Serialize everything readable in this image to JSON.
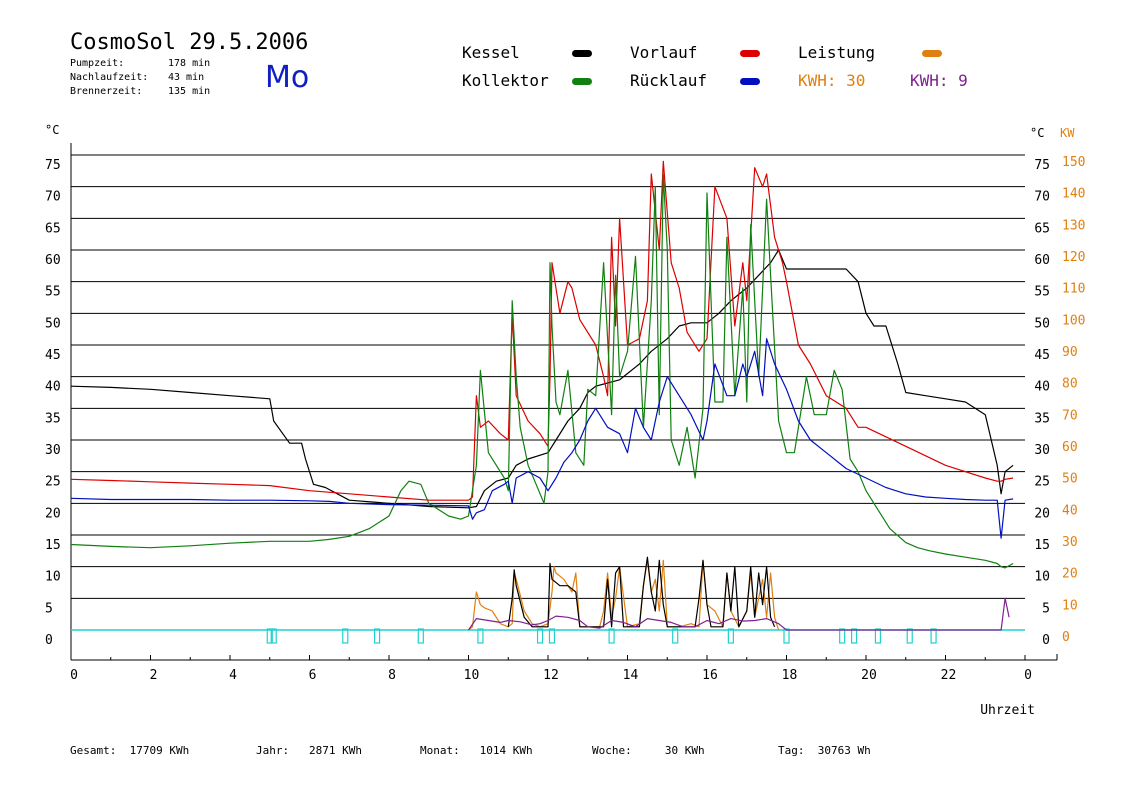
{
  "header": {
    "title": "CosmoSol 29.5.2006",
    "day": "Mo",
    "pumpzeit_label": "Pumpzeit:",
    "pumpzeit_value": "178 min",
    "nachlauf_label": "Nachlaufzeit:",
    "nachlauf_value": "43 min",
    "brenner_label": "Brennerzeit:",
    "brenner_value": "135 min"
  },
  "legend": {
    "kessel": "Kessel",
    "vorlauf": "Vorlauf",
    "leistung": "Leistung",
    "kollektor": "Kollektor",
    "ruecklauf": "Rücklauf",
    "kwh1": "KWH: 30",
    "kwh2": "KWH: 9"
  },
  "colors": {
    "kessel": "#000000",
    "vorlauf": "#dd0000",
    "leistung": "#e08010",
    "kollektor": "#108010",
    "ruecklauf": "#0010c0",
    "kwh2": "#802090",
    "pump": "#20d0d0"
  },
  "footer": {
    "gesamt": "Gesamt:  17709 KWh",
    "jahr": "Jahr:   2871 KWh",
    "monat": "Monat:   1014 KWh",
    "woche": "Woche:     30 KWh",
    "tag": "Tag:  30763 Wh"
  },
  "chart_data": {
    "type": "line",
    "xlabel": "Uhrzeit",
    "ylabel_left": "°C",
    "ylabel_right_temp": "°C",
    "ylabel_right_power": "KW",
    "xlim": [
      0,
      24
    ],
    "ylim": [
      0,
      75
    ],
    "y2lim": [
      0,
      150
    ],
    "x_ticks": [
      "0",
      "2",
      "4",
      "6",
      "8",
      "10",
      "12",
      "14",
      "16",
      "18",
      "20",
      "22",
      "0"
    ],
    "y_ticks": [
      "0",
      "5",
      "10",
      "15",
      "20",
      "25",
      "30",
      "35",
      "40",
      "45",
      "50",
      "55",
      "60",
      "65",
      "70",
      "75"
    ],
    "y2_ticks": [
      "0",
      "10",
      "20",
      "30",
      "40",
      "50",
      "60",
      "70",
      "80",
      "90",
      "100",
      "110",
      "120",
      "130",
      "140",
      "150"
    ],
    "grid": true,
    "series": [
      {
        "name": "Kessel",
        "color": "#000000",
        "x": [
          0,
          1,
          2,
          3,
          4,
          5,
          5.1,
          5.5,
          5.8,
          5.9,
          6.1,
          6.4,
          7,
          8,
          9,
          10,
          10.2,
          10.4,
          10.7,
          11,
          11.2,
          11.5,
          12,
          12.2,
          12.5,
          12.8,
          13,
          13.2,
          13.5,
          13.8,
          14,
          14.3,
          14.6,
          15,
          15.3,
          15.6,
          16,
          16.3,
          16.6,
          17,
          17.3,
          17.6,
          17.8,
          18,
          18.5,
          19,
          19.5,
          19.8,
          20,
          20.2,
          20.5,
          20.8,
          21,
          21.5,
          22,
          22.5,
          23,
          23.3,
          23.4,
          23.5,
          23.7
        ],
        "y": [
          38.5,
          38.3,
          38,
          37.5,
          37,
          36.5,
          33,
          29.5,
          29.5,
          27,
          23,
          22.5,
          20.5,
          20,
          19.5,
          19.3,
          19.5,
          22,
          23.5,
          24,
          26,
          27,
          28,
          30,
          33,
          35,
          37.5,
          38.5,
          39,
          39.5,
          40.5,
          42,
          44,
          46,
          48,
          48.5,
          48.5,
          50,
          52,
          54,
          56,
          58,
          60,
          57,
          57,
          57,
          57,
          55,
          50,
          48,
          48,
          42,
          37.5,
          37,
          36.5,
          36,
          34,
          26,
          21.5,
          25,
          26
        ]
      },
      {
        "name": "Vorlauf",
        "color": "#dd0000",
        "x": [
          0,
          1,
          2,
          3,
          4,
          5,
          6,
          7,
          8,
          9,
          10,
          10.1,
          10.2,
          10.3,
          10.5,
          10.8,
          11,
          11.1,
          11.2,
          11.5,
          11.8,
          12,
          12.05,
          12.1,
          12.3,
          12.5,
          12.6,
          12.8,
          13.2,
          13.4,
          13.5,
          13.6,
          13.7,
          13.8,
          14,
          14.3,
          14.5,
          14.6,
          14.8,
          14.9,
          15.1,
          15.3,
          15.5,
          15.8,
          16,
          16.2,
          16.5,
          16.7,
          16.9,
          17,
          17.2,
          17.4,
          17.5,
          17.7,
          17.9,
          18,
          18.3,
          18.6,
          19,
          19.5,
          19.8,
          20,
          20.5,
          21,
          21.5,
          22,
          22.5,
          23,
          23.3,
          23.4,
          23.5,
          23.7
        ],
        "y": [
          23.8,
          23.6,
          23.4,
          23.2,
          23,
          22.8,
          22,
          21.5,
          21,
          20.5,
          20.5,
          21,
          37,
          32,
          33,
          31,
          30,
          50,
          37,
          33,
          31,
          29,
          40,
          58,
          50,
          55,
          54,
          49,
          45,
          40,
          37,
          62,
          48,
          65,
          45,
          46,
          52,
          72,
          60,
          74,
          58,
          54,
          47,
          44,
          46,
          70,
          65,
          48,
          58,
          52,
          73,
          70,
          72,
          62,
          58,
          55,
          45,
          42,
          37,
          35,
          32,
          32,
          30.5,
          29,
          27.5,
          26,
          25,
          24,
          23.5,
          23.5,
          23.8,
          24
        ]
      },
      {
        "name": "Kollektor",
        "color": "#108010",
        "x": [
          0,
          1,
          2,
          3,
          4,
          5,
          6,
          6.5,
          7,
          7.5,
          8,
          8.3,
          8.5,
          8.8,
          9,
          9.5,
          9.8,
          10,
          10.2,
          10.3,
          10.5,
          10.7,
          10.9,
          11,
          11.1,
          11.2,
          11.3,
          11.5,
          11.7,
          11.9,
          12,
          12.05,
          12.1,
          12.2,
          12.3,
          12.5,
          12.7,
          12.9,
          13,
          13.2,
          13.4,
          13.6,
          13.7,
          13.8,
          13.9,
          14,
          14.2,
          14.4,
          14.6,
          14.7,
          14.8,
          14.9,
          15,
          15.1,
          15.3,
          15.5,
          15.7,
          15.9,
          16,
          16.2,
          16.4,
          16.5,
          16.7,
          16.9,
          17,
          17.1,
          17.3,
          17.5,
          17.6,
          17.8,
          18,
          18.2,
          18.4,
          18.5,
          18.7,
          19,
          19.2,
          19.4,
          19.6,
          19.8,
          20,
          20.3,
          20.6,
          21,
          21.3,
          21.6,
          22,
          22.5,
          23,
          23.3,
          23.4,
          23.5,
          23.7
        ],
        "y": [
          13.5,
          13.2,
          13,
          13.3,
          13.7,
          14,
          14,
          14.3,
          14.8,
          16,
          18,
          22,
          23.5,
          23,
          20,
          18,
          17.5,
          18,
          26,
          41,
          28,
          26,
          24,
          22,
          52,
          40,
          32,
          26,
          23,
          20,
          25,
          58,
          48,
          36,
          34,
          41,
          28,
          26,
          38,
          37,
          58,
          34,
          56,
          40,
          42,
          44,
          59,
          32,
          52,
          70,
          34,
          72,
          60,
          30,
          26,
          32,
          24,
          35,
          69,
          36,
          36,
          62,
          37,
          54,
          36,
          64,
          40,
          68,
          56,
          33,
          28,
          28,
          36,
          40,
          34,
          34,
          41,
          38,
          27,
          25,
          22,
          19,
          16,
          13.8,
          13,
          12.5,
          12,
          11.5,
          11,
          10.5,
          10,
          9.8,
          10.5
        ]
      },
      {
        "name": "Rücklauf",
        "color": "#0010c0",
        "x": [
          0,
          1,
          2,
          3,
          4,
          5,
          6,
          6.5,
          7,
          8,
          9,
          10,
          10.1,
          10.2,
          10.4,
          10.6,
          10.9,
          11,
          11.1,
          11.2,
          11.5,
          11.8,
          12,
          12.2,
          12.4,
          12.6,
          12.8,
          13,
          13.2,
          13.5,
          13.8,
          14,
          14.2,
          14.4,
          14.6,
          14.8,
          15,
          15.3,
          15.6,
          15.9,
          16,
          16.2,
          16.5,
          16.7,
          16.9,
          17,
          17.2,
          17.4,
          17.5,
          17.7,
          18,
          18.3,
          18.6,
          19,
          19.5,
          20,
          20.5,
          21,
          21.5,
          22,
          22.5,
          23,
          23.3,
          23.4,
          23.5,
          23.7
        ],
        "y": [
          20.8,
          20.6,
          20.6,
          20.6,
          20.5,
          20.5,
          20.4,
          20.3,
          20,
          19.8,
          19.7,
          19.6,
          17.5,
          18.5,
          19,
          22,
          23,
          23.5,
          20,
          24,
          25,
          24,
          22,
          24,
          26.5,
          28,
          30,
          33,
          35,
          32,
          31,
          28,
          35,
          32,
          30,
          36,
          40,
          37,
          34,
          30,
          33,
          42,
          37,
          37,
          42,
          40,
          44,
          37,
          46,
          42,
          38,
          33,
          30,
          28,
          25.5,
          24,
          22.5,
          21.5,
          21,
          20.8,
          20.6,
          20.5,
          20.5,
          14.5,
          20.5,
          20.7
        ]
      },
      {
        "name": "Leistung",
        "color": "#e08010",
        "x": [
          10,
          10.1,
          10.2,
          10.3,
          10.4,
          10.6,
          10.8,
          11,
          11.1,
          11.15,
          11.2,
          11.4,
          11.6,
          11.8,
          12,
          12.1,
          12.15,
          12.2,
          12.4,
          12.6,
          12.7,
          12.8,
          13,
          13.3,
          13.4,
          13.5,
          13.6,
          13.7,
          13.8,
          14,
          14.3,
          14.4,
          14.5,
          14.6,
          14.7,
          14.8,
          14.9,
          15,
          15.1,
          15.3,
          15.6,
          15.8,
          15.9,
          16,
          16.2,
          16.4,
          16.5,
          16.6,
          16.8,
          17,
          17.1,
          17.2,
          17.4,
          17.5,
          17.6,
          17.7,
          17.8
        ],
        "y": [
          0,
          0.5,
          6,
          4,
          3.5,
          3,
          1,
          0.5,
          1,
          9,
          8,
          3,
          1,
          0.5,
          1,
          6,
          10,
          9,
          8,
          6,
          9,
          0.5,
          0.5,
          0.5,
          3,
          9,
          2,
          5,
          10,
          0.5,
          1,
          7,
          11,
          6,
          8,
          3,
          11,
          0.5,
          0.5,
          0.5,
          1,
          0.5,
          11,
          4,
          3,
          0.5,
          9,
          3,
          0.5,
          3,
          9,
          2,
          8,
          2,
          9,
          2,
          0
        ]
      },
      {
        "name": "Kessel Leistung",
        "color": "#000000",
        "x": [
          11,
          11.1,
          11.15,
          11.2,
          11.4,
          11.6,
          11.7,
          11.8,
          12,
          12.05,
          12.1,
          12.3,
          12.5,
          12.7,
          12.8,
          13.4,
          13.5,
          13.6,
          13.7,
          13.8,
          13.9,
          14.3,
          14.4,
          14.5,
          14.6,
          14.7,
          14.8,
          14.9,
          15,
          15.7,
          15.8,
          15.9,
          16,
          16.1,
          16.2,
          16.4,
          16.5,
          16.6,
          16.7,
          16.8,
          17,
          17.1,
          17.2,
          17.3,
          17.4,
          17.5,
          17.6,
          17.7
        ],
        "y": [
          0.5,
          5,
          9.5,
          7,
          2,
          0.5,
          0.5,
          0.5,
          0.5,
          10.5,
          8,
          7,
          7,
          6,
          0.5,
          0.5,
          8,
          0.5,
          9,
          10,
          0.5,
          0.5,
          7,
          11.5,
          6,
          3,
          11,
          4,
          0.5,
          0.5,
          5,
          11,
          4,
          0.5,
          0.5,
          0.5,
          9,
          3,
          10,
          0.5,
          3,
          10,
          2,
          9,
          4,
          10,
          2,
          0.5
        ]
      },
      {
        "name": "KWH 9",
        "color": "#802090",
        "x": [
          10,
          10.2,
          10.5,
          10.8,
          11,
          11.3,
          11.6,
          11.8,
          12,
          12.2,
          12.5,
          12.8,
          13,
          13.3,
          13.6,
          13.9,
          14.2,
          14.5,
          14.8,
          15.1,
          15.4,
          15.7,
          16,
          16.3,
          16.6,
          16.9,
          17.2,
          17.5,
          17.8,
          18,
          23.4,
          23.5,
          23.6
        ],
        "y": [
          0,
          1.8,
          1.5,
          1.2,
          1.5,
          1.3,
          0.8,
          1,
          1.5,
          2.2,
          2,
          1.5,
          0.5,
          0.3,
          1.5,
          1.2,
          0.5,
          1.8,
          1.5,
          1.2,
          0.5,
          0.5,
          1.5,
          1,
          1.8,
          1.4,
          1.5,
          1.8,
          1,
          0,
          0,
          5,
          2
        ]
      }
    ],
    "pump_markers_hours": [
      5,
      5.1,
      6.9,
      7.7,
      8.8,
      10.3,
      11.8,
      12.1,
      13.6,
      15.2,
      16.6,
      18,
      19.4,
      19.7,
      20.3,
      21.1,
      21.7
    ]
  }
}
